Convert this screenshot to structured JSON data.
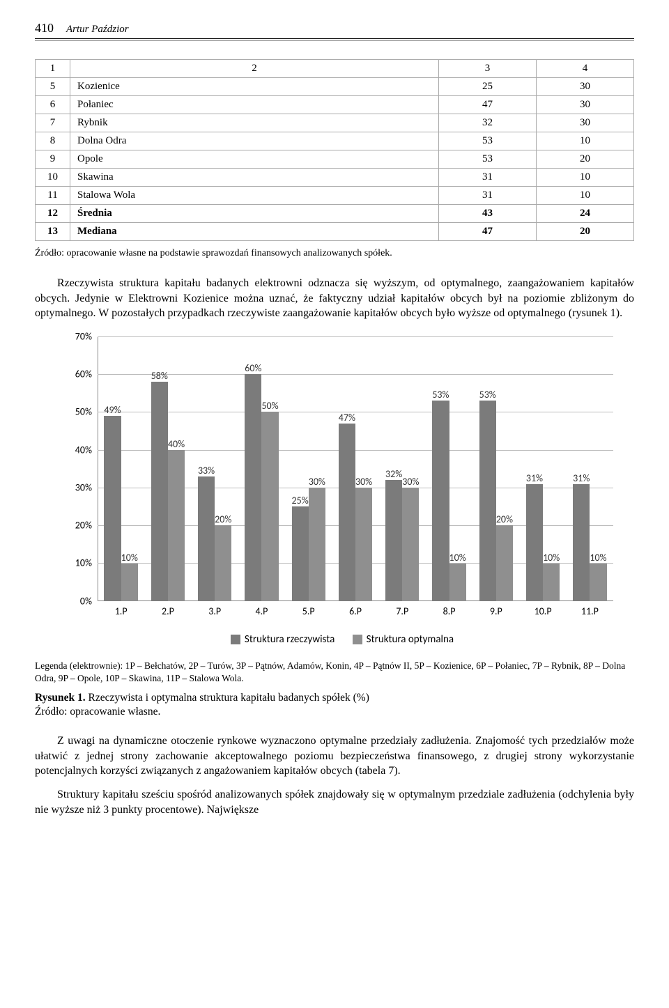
{
  "header": {
    "page_no": "410",
    "author": "Artur Paździor"
  },
  "table": {
    "header_row": [
      "1",
      "2",
      "3",
      "4"
    ],
    "rows": [
      {
        "n": "5",
        "name": "Kozienice",
        "a": "25",
        "b": "30",
        "bold": false
      },
      {
        "n": "6",
        "name": "Połaniec",
        "a": "47",
        "b": "30",
        "bold": false
      },
      {
        "n": "7",
        "name": "Rybnik",
        "a": "32",
        "b": "30",
        "bold": false
      },
      {
        "n": "8",
        "name": "Dolna Odra",
        "a": "53",
        "b": "10",
        "bold": false
      },
      {
        "n": "9",
        "name": "Opole",
        "a": "53",
        "b": "20",
        "bold": false
      },
      {
        "n": "10",
        "name": "Skawina",
        "a": "31",
        "b": "10",
        "bold": false
      },
      {
        "n": "11",
        "name": "Stalowa Wola",
        "a": "31",
        "b": "10",
        "bold": false
      },
      {
        "n": "12",
        "name": "Średnia",
        "a": "43",
        "b": "24",
        "bold": true
      },
      {
        "n": "13",
        "name": "Mediana",
        "a": "47",
        "b": "20",
        "bold": true
      }
    ],
    "caption": "Źródło: opracowanie własne na podstawie sprawozdań finansowych analizowanych spółek."
  },
  "para1": "Rzeczywista struktura kapitału badanych elektrowni odznacza się wyższym, od optymalnego, zaangażowaniem kapitałów obcych. Jedynie w Elektrowni Kozienice można uznać, że faktyczny udział kapitałów obcych był na poziomie zbliżonym do optymalnego. W pozostałych przypadkach rzeczywiste zaangażowanie kapitałów obcych było wyższe od optymalnego (rysunek 1).",
  "chart": {
    "type": "bar",
    "ymax": 70,
    "ytick_step": 10,
    "yticks": [
      "0%",
      "10%",
      "20%",
      "30%",
      "40%",
      "50%",
      "60%",
      "70%"
    ],
    "categories": [
      "1.P",
      "2.P",
      "3.P",
      "4.P",
      "5.P",
      "6.P",
      "7.P",
      "8.P",
      "9.P",
      "10.P",
      "11.P"
    ],
    "series1_label": "Struktura rzeczywista",
    "series2_label": "Struktura optymalna",
    "series1": [
      49,
      58,
      33,
      60,
      25,
      47,
      32,
      53,
      53,
      31,
      31
    ],
    "series2": [
      10,
      40,
      20,
      50,
      30,
      30,
      30,
      10,
      20,
      10,
      10
    ],
    "bar_color1": "#7b7b7b",
    "bar_color2": "#8f8f8f",
    "grid_color": "#bbbbbb",
    "label_fontsize": 14
  },
  "legend_text": "Legenda (elektrownie): 1P – Bełchatów, 2P – Turów, 3P – Pątnów, Adamów, Konin, 4P – Pątnów II, 5P – Kozienice, 6P – Połaniec, 7P – Rybnik, 8P – Dolna Odra, 9P – Opole, 10P – Skawina, 11P – Stalowa Wola.",
  "fig_label": "Rysunek 1.",
  "fig_title": " Rzeczywista i optymalna struktura kapitału badanych spółek (%)",
  "fig_src": "Źródło: opracowanie własne.",
  "para2": "Z uwagi na dynamiczne otoczenie rynkowe wyznaczono optymalne przedziały zadłużenia. Znajomość tych przedziałów może ułatwić z jednej strony zachowanie akceptowalnego poziomu bezpieczeństwa finansowego, z drugiej strony wykorzystanie potencjalnych korzyści związanych z angażowaniem kapitałów obcych (tabela 7).",
  "para3": "Struktury kapitału sześciu spośród analizowanych spółek znajdowały się w optymalnym przedziale zadłużenia (odchylenia były nie wyższe niż 3 punkty procentowe). Największe"
}
